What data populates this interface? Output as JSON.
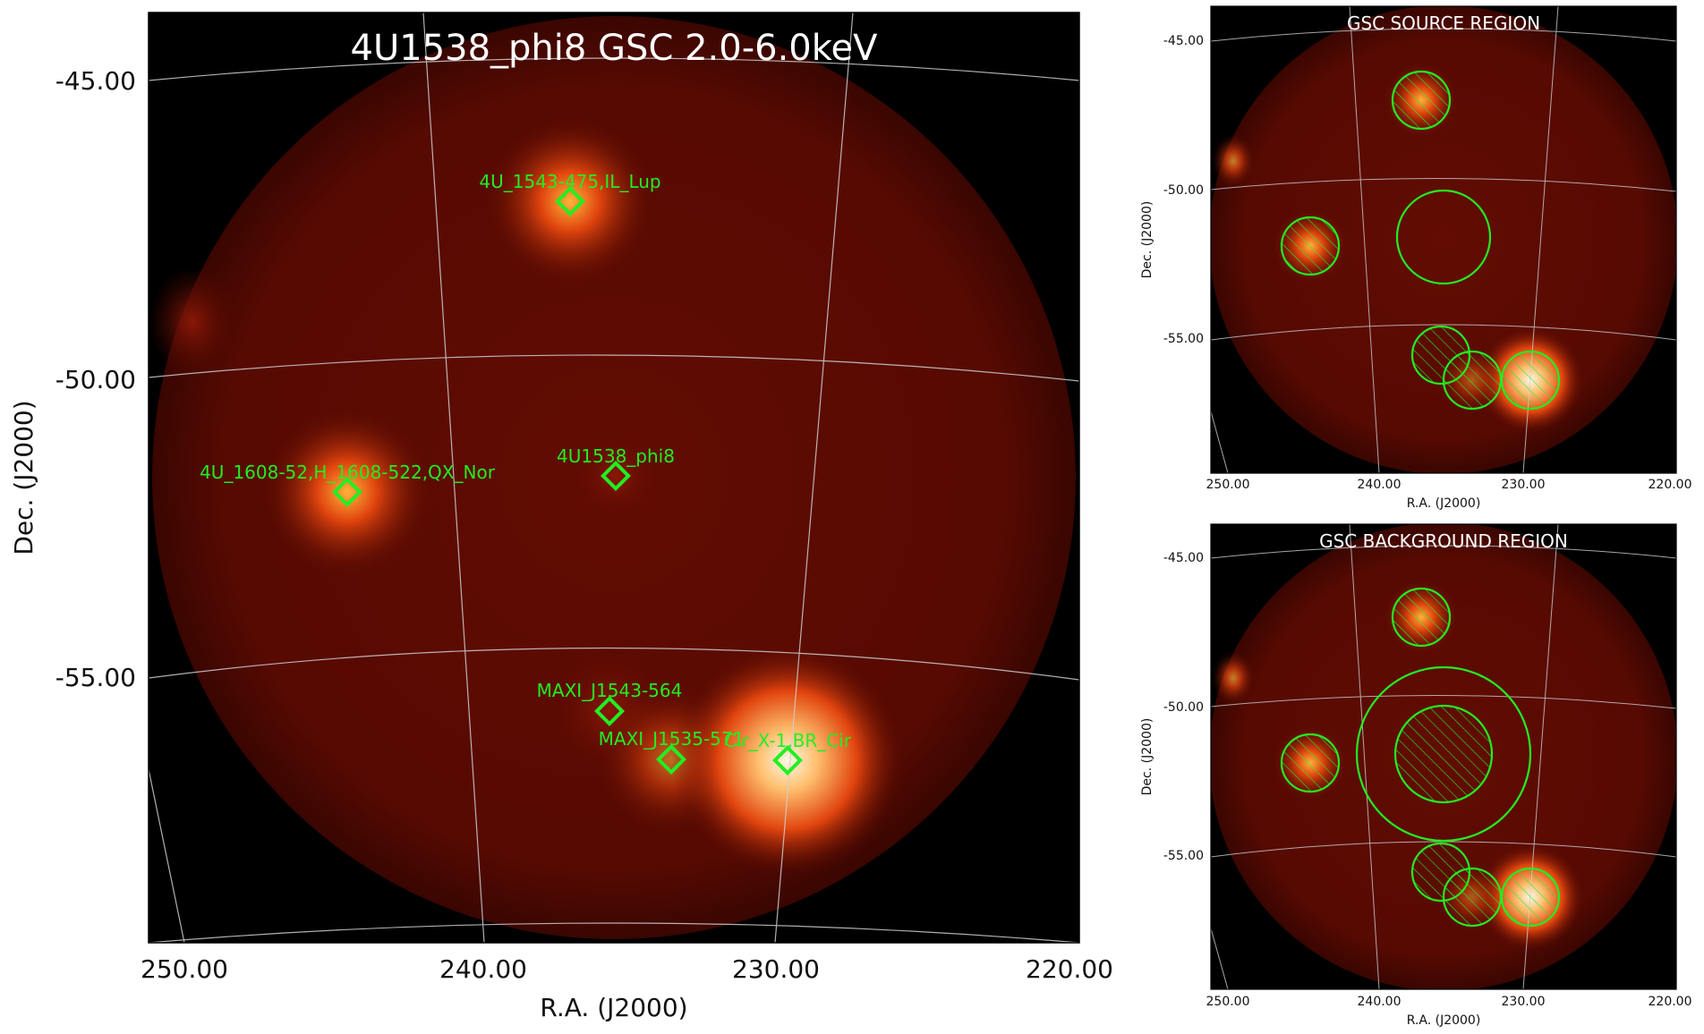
{
  "main": {
    "title": "4U1538_phi8 GSC 2.0-6.0keV",
    "xlabel": "R.A. (J2000)",
    "ylabel": "Dec. (J2000)",
    "xticks": [
      "250.00",
      "240.00",
      "230.00",
      "220.00"
    ],
    "yticks": [
      "-45.00",
      "-50.00",
      "-55.00"
    ],
    "sources": [
      {
        "label": "4U_1543-475,IL_Lup"
      },
      {
        "label": "4U_1608-52,H_1608-522,QX_Nor"
      },
      {
        "label": "4U1538_phi8"
      },
      {
        "label": "MAXI_J1543-564"
      },
      {
        "label": "MAXI_J1535-571"
      },
      {
        "label": "Cir_X-1,BR_Cir"
      }
    ]
  },
  "source_panel": {
    "title": "GSC SOURCE REGION",
    "xlabel": "R.A. (J2000)",
    "ylabel": "Dec. (J2000)",
    "xticks": [
      "250.00",
      "240.00",
      "230.00",
      "220.00"
    ],
    "yticks": [
      "-45.00",
      "-50.00",
      "-55.00"
    ]
  },
  "background_panel": {
    "title": "GSC BACKGROUND REGION",
    "xlabel": "R.A. (J2000)",
    "ylabel": "Dec. (J2000)",
    "xticks": [
      "250.00",
      "240.00",
      "230.00",
      "220.00"
    ],
    "yticks": [
      "-45.00",
      "-50.00",
      "-55.00"
    ]
  },
  "colors": {
    "marker": "#22ee22",
    "grid": "#cfcfcf",
    "background": "#000000",
    "map": "#5a0a02"
  }
}
